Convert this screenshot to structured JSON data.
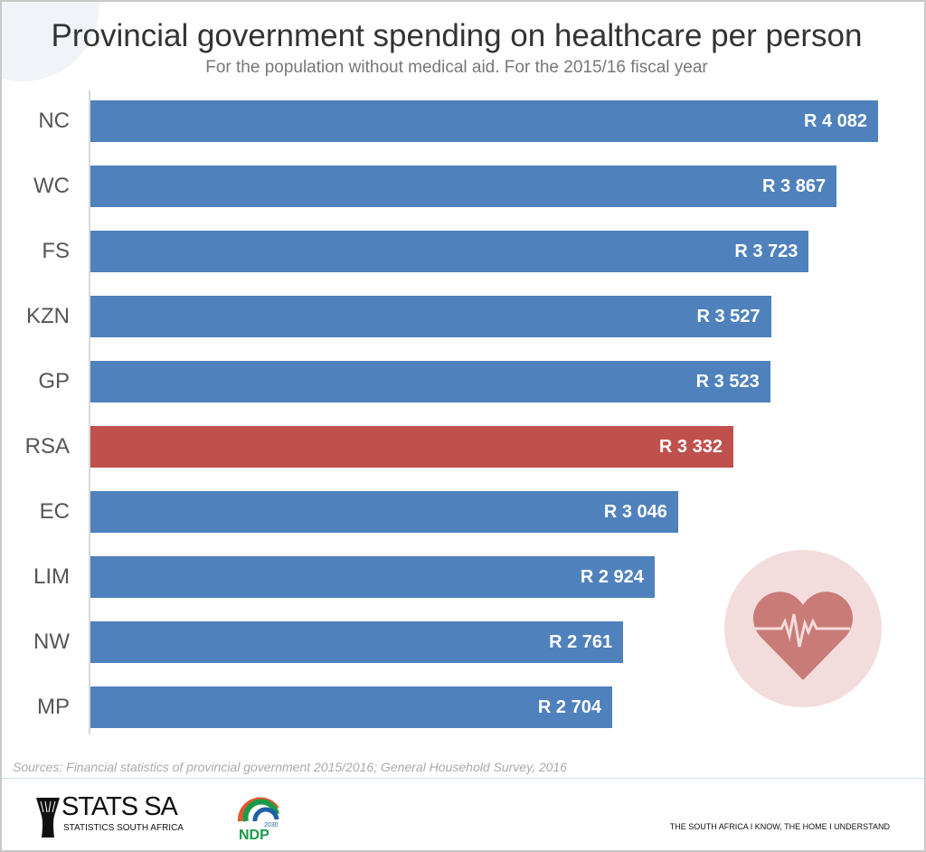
{
  "chart_data": {
    "type": "bar",
    "orientation": "horizontal",
    "title": "Provincial government spending on healthcare per person",
    "subtitle": "For the population without medical aid. For the 2015/16 fiscal year",
    "categories": [
      "NC",
      "WC",
      "FS",
      "KZN",
      "GP",
      "RSA",
      "EC",
      "LIM",
      "NW",
      "MP"
    ],
    "values": [
      4082,
      3867,
      3723,
      3527,
      3523,
      3332,
      3046,
      2924,
      2761,
      2704
    ],
    "value_labels": [
      "R 4 082",
      "R 3 867",
      "R 3 723",
      "R 3 527",
      "R 3 523",
      "R 3 332",
      "R 3 046",
      "R 2 924",
      "R 2 761",
      "R 2 704"
    ],
    "highlight": "RSA",
    "xlim": [
      0,
      4082
    ],
    "grid": false,
    "colors": {
      "bar": "#4f81bd",
      "highlight": "#c0504d",
      "heart": "#c97b78",
      "heart_bg": "#f3dcdc"
    }
  },
  "footer": {
    "source": "Sources: Financial statistics of provincial government 2015/2016; General Household Survey, 2016",
    "logo_stats": "STATS SA",
    "logo_stats_sub": "STATISTICS SOUTH AFRICA",
    "logo_ndp": "NDP",
    "logo_ndp_year": "2030",
    "tagline": "THE SOUTH AFRICA I KNOW, THE HOME I UNDERSTAND"
  }
}
